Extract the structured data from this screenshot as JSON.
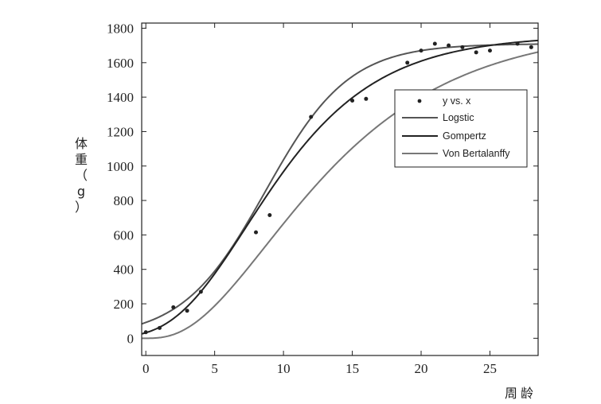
{
  "chart_data": {
    "type": "line",
    "title": "",
    "xlabel": "周龄",
    "ylabel": "体重（g）",
    "xlim": [
      -0.3,
      28.5
    ],
    "ylim": [
      -100,
      1830
    ],
    "xticks": [
      0,
      5,
      10,
      15,
      20,
      25
    ],
    "yticks": [
      0,
      200,
      400,
      600,
      800,
      1000,
      1200,
      1400,
      1600,
      1800
    ],
    "grid": false,
    "legend_position": "right",
    "legend": [
      "y vs. x",
      "Logstic",
      "Gompertz",
      "Von Bertalanffy"
    ],
    "scatter": {
      "name": "y vs. x",
      "x": [
        0,
        1,
        2,
        3,
        4,
        8,
        9,
        12,
        15,
        16,
        19,
        20,
        21,
        22,
        23,
        24,
        25,
        27,
        28
      ],
      "y": [
        35,
        60,
        180,
        160,
        270,
        615,
        715,
        1285,
        1380,
        1390,
        1600,
        1670,
        1710,
        1700,
        1690,
        1660,
        1670,
        1710,
        1690
      ]
    },
    "series": [
      {
        "name": "Logstic",
        "model": "logistic",
        "params": {
          "A": 1710,
          "k": 0.33,
          "t0": 8.7
        }
      },
      {
        "name": "Gompertz",
        "model": "gompertz",
        "params": {
          "A": 1760,
          "k": 0.19,
          "t0": 7.3
        }
      },
      {
        "name": "Von Bertalanffy",
        "model": "bertalanffy",
        "params": {
          "A": 1810,
          "k": 0.125,
          "b": 0.99
        }
      }
    ],
    "colors": {
      "axis": "#222222",
      "series": [
        "#555555",
        "#222222",
        "#777777"
      ],
      "marker": "#222222"
    }
  }
}
